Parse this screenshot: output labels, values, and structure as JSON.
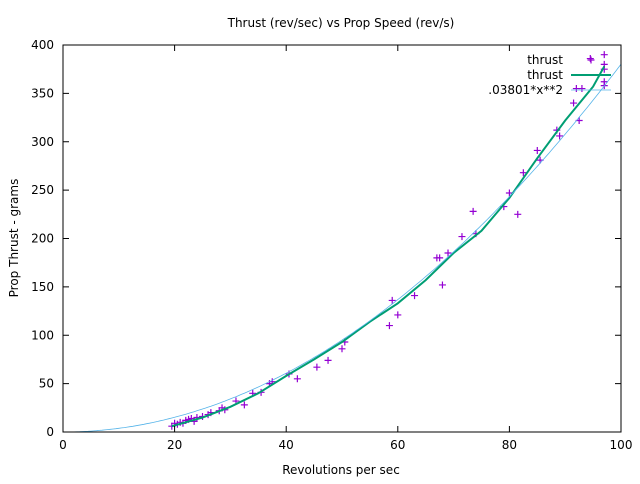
{
  "chart_data": {
    "type": "scatter",
    "title": "Thrust (rev/sec) vs Prop Speed (rev/s)",
    "xlabel": "Revolutions per sec",
    "ylabel": "Prop Thrust - grams",
    "xlim": [
      0,
      100
    ],
    "ylim": [
      0,
      400
    ],
    "x_ticks": [
      0,
      20,
      40,
      60,
      80,
      100
    ],
    "y_ticks": [
      0,
      50,
      100,
      150,
      200,
      250,
      300,
      350,
      400
    ],
    "grid": false,
    "legend_position": "top-right",
    "series": [
      {
        "name": "thrust",
        "style": "points",
        "marker": "plus",
        "color": "#9400d3",
        "points": [
          [
            19.5,
            6
          ],
          [
            20.0,
            9
          ],
          [
            20.5,
            8
          ],
          [
            21.0,
            10
          ],
          [
            21.5,
            9
          ],
          [
            22.0,
            12
          ],
          [
            22.5,
            13
          ],
          [
            23.0,
            14
          ],
          [
            23.5,
            11
          ],
          [
            24.0,
            15
          ],
          [
            25.0,
            16
          ],
          [
            26.0,
            18
          ],
          [
            26.5,
            20
          ],
          [
            28.0,
            22
          ],
          [
            28.5,
            25
          ],
          [
            29.0,
            23
          ],
          [
            31.0,
            32
          ],
          [
            32.5,
            28
          ],
          [
            34.0,
            40
          ],
          [
            35.5,
            41
          ],
          [
            37.0,
            50
          ],
          [
            37.5,
            52
          ],
          [
            40.5,
            60
          ],
          [
            42.0,
            55
          ],
          [
            45.5,
            67
          ],
          [
            47.5,
            74
          ],
          [
            50.0,
            86
          ],
          [
            50.5,
            93
          ],
          [
            58.5,
            110
          ],
          [
            59.0,
            136
          ],
          [
            60.0,
            121
          ],
          [
            63.0,
            141
          ],
          [
            67.0,
            180
          ],
          [
            67.5,
            180
          ],
          [
            68.0,
            152
          ],
          [
            69.0,
            185
          ],
          [
            71.5,
            202
          ],
          [
            73.5,
            228
          ],
          [
            74.0,
            205
          ],
          [
            79.0,
            233
          ],
          [
            80.0,
            247
          ],
          [
            81.5,
            225
          ],
          [
            82.5,
            268
          ],
          [
            85.0,
            291
          ],
          [
            85.5,
            281
          ],
          [
            88.5,
            312
          ],
          [
            89.0,
            306
          ],
          [
            91.5,
            340
          ],
          [
            92.0,
            355
          ],
          [
            92.5,
            322
          ],
          [
            93.0,
            355
          ],
          [
            94.5,
            386
          ],
          [
            97.0,
            390
          ],
          [
            97.0,
            380
          ],
          [
            97.0,
            375
          ],
          [
            97.0,
            362
          ],
          [
            97.0,
            358
          ]
        ]
      },
      {
        "name": "thrust",
        "style": "line",
        "color": "#009e73",
        "points": [
          [
            19.5,
            6
          ],
          [
            25,
            15
          ],
          [
            30,
            26
          ],
          [
            35,
            40
          ],
          [
            40,
            58
          ],
          [
            45,
            75
          ],
          [
            50,
            93
          ],
          [
            55,
            114
          ],
          [
            60,
            133
          ],
          [
            65,
            157
          ],
          [
            70,
            185
          ],
          [
            75,
            208
          ],
          [
            80,
            242
          ],
          [
            85,
            283
          ],
          [
            90,
            322
          ],
          [
            95,
            357
          ],
          [
            97,
            378
          ]
        ]
      },
      {
        "name": ".03801*x**2",
        "style": "function",
        "coefficient": 0.03801,
        "exponent": 2,
        "color": "#56b4e9",
        "x_range": [
          0,
          100
        ]
      }
    ]
  }
}
